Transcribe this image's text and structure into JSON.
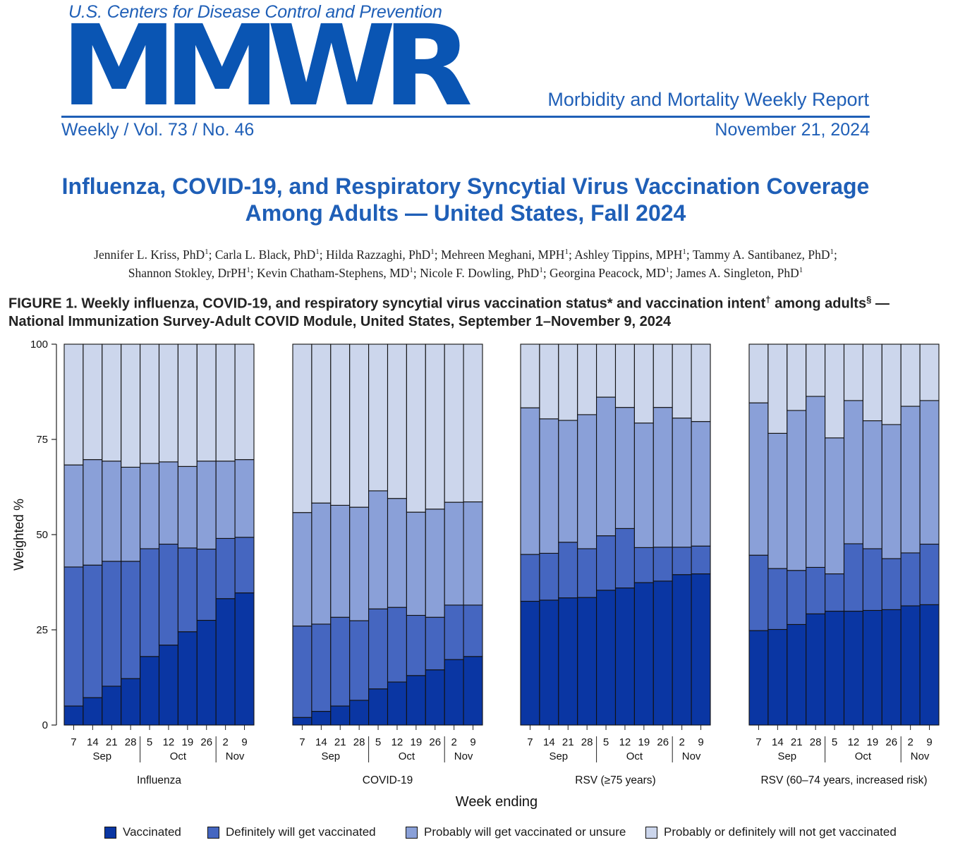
{
  "header": {
    "agency": "U.S. Centers for Disease Control and Prevention",
    "logo_text": "MMWR",
    "report_name": "Morbidity and Mortality Weekly Report",
    "issue": "Weekly / Vol. 73 / No. 46",
    "date": "November 21, 2024"
  },
  "article": {
    "title_line1": "Influenza, COVID-19, and Respiratory Syncytial Virus Vaccination Coverage",
    "title_line2": "Among Adults — United States, Fall 2024",
    "authors_line1": "Jennifer L. Kriss, PhD1; Carla L. Black, PhD1; Hilda Razzaghi, PhD1; Mehreen Meghani, MPH1; Ashley Tippins, MPH1; Tammy A. Santibanez, PhD1;",
    "authors_line2": "Shannon Stokley, DrPH1; Kevin Chatham-Stephens, MD1; Nicole F. Dowling, PhD1; Georgina Peacock, MD1; James A. Singleton, PhD1"
  },
  "figure": {
    "caption_line1": "FIGURE 1. Weekly influenza, COVID-19, and respiratory syncytial virus vaccination status* and vaccination intent† among adults§ —",
    "caption_line2": "National Immunization Survey-Adult COVID Module, United States, September 1–November 9, 2024"
  },
  "chart_data": {
    "type": "bar",
    "stacked": true,
    "xlabel": "Week ending",
    "ylabel": "Weighted %",
    "ylim": [
      0,
      100
    ],
    "yticks": [
      0,
      25,
      50,
      75,
      100
    ],
    "grid": false,
    "legend_position": "bottom",
    "categories": [
      "7",
      "14",
      "21",
      "28",
      "5",
      "12",
      "19",
      "26",
      "2",
      "9"
    ],
    "months": [
      {
        "label": "Sep",
        "weeks": [
          "7",
          "14",
          "21",
          "28"
        ]
      },
      {
        "label": "Oct",
        "weeks": [
          "5",
          "12",
          "19",
          "26"
        ]
      },
      {
        "label": "Nov",
        "weeks": [
          "2",
          "9"
        ]
      }
    ],
    "series_names": [
      "Vaccinated",
      "Definitely will get vaccinated",
      "Probably will get vaccinated or unsure",
      "Probably or definitely will not get vaccinated"
    ],
    "series_colors": [
      "#0a36a3",
      "#4566c0",
      "#8aa0d8",
      "#ccd6ec"
    ],
    "panels": [
      {
        "name": "Influenza",
        "vaccinated": [
          5,
          7.2,
          10.2,
          12.2,
          18,
          21,
          24.5,
          27.5,
          33.2,
          34.7
        ],
        "definitely_cum": [
          41.5,
          42,
          43,
          43,
          46.3,
          47.5,
          46.5,
          46.2,
          49,
          49.3
        ],
        "probably_cum": [
          68.3,
          69.7,
          69.3,
          67.7,
          68.7,
          69.1,
          67.9,
          69.3,
          69.3,
          69.7
        ]
      },
      {
        "name": "COVID-19",
        "vaccinated": [
          2,
          3.6,
          5,
          6.5,
          9.5,
          11.3,
          13,
          14.5,
          17.2,
          18
        ],
        "definitely_cum": [
          26,
          26.5,
          28.3,
          27.4,
          30.5,
          30.9,
          28.8,
          28.3,
          31.5,
          31.5
        ],
        "probably_cum": [
          55.8,
          58.3,
          57.7,
          57.2,
          61.5,
          59.5,
          55.9,
          56.7,
          58.5,
          58.6
        ]
      },
      {
        "name": "RSV (≥75 years)",
        "vaccinated": [
          32.5,
          32.8,
          33.4,
          33.5,
          35.4,
          36,
          37.4,
          37.8,
          39.5,
          39.7
        ],
        "definitely_cum": [
          44.8,
          45.1,
          48,
          46.3,
          49.7,
          51.6,
          46.6,
          46.7,
          46.7,
          47
        ],
        "probably_cum": [
          83.3,
          80.4,
          80,
          81.5,
          86.1,
          83.4,
          79.3,
          83.4,
          80.6,
          79.7
        ]
      },
      {
        "name": "RSV (60–74 years, increased risk)",
        "vaccinated": [
          24.8,
          25.1,
          26.4,
          29.2,
          29.9,
          29.9,
          30.1,
          30.3,
          31.3,
          31.6
        ],
        "definitely_cum": [
          44.6,
          41.1,
          40.6,
          41.4,
          39.7,
          47.6,
          46.3,
          43.7,
          45.2,
          47.5
        ],
        "probably_cum": [
          84.6,
          76.6,
          82.6,
          86.3,
          75.4,
          85.2,
          79.9,
          78.9,
          83.7,
          85.2
        ]
      }
    ]
  }
}
